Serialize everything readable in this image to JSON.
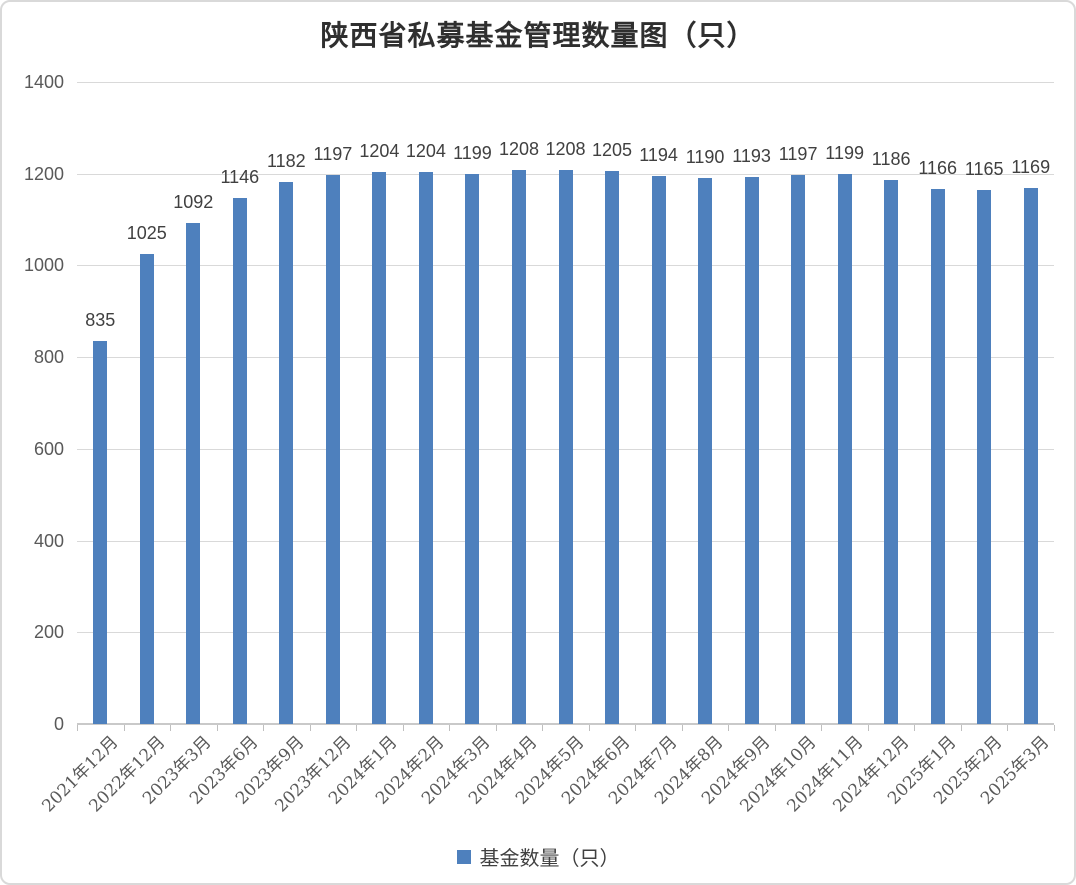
{
  "chart_data": {
    "type": "bar",
    "title": "陕西省私募基金管理数量图（只）",
    "series_name": "基金数量（只）",
    "categories": [
      "2021年12月",
      "2022年12月",
      "2023年3月",
      "2023年6月",
      "2023年9月",
      "2023年12月",
      "2024年1月",
      "2024年2月",
      "2024年3月",
      "2024年4月",
      "2024年5月",
      "2024年6月",
      "2024年7月",
      "2024年8月",
      "2024年9月",
      "2024年10月",
      "2024年11月",
      "2024年12月",
      "2025年1月",
      "2025年2月",
      "2025年3月"
    ],
    "values": [
      835,
      1025,
      1092,
      1146,
      1182,
      1197,
      1204,
      1204,
      1199,
      1208,
      1208,
      1205,
      1194,
      1190,
      1193,
      1197,
      1199,
      1186,
      1166,
      1165,
      1169
    ],
    "ylim": [
      0,
      1400
    ],
    "yticks": [
      0,
      200,
      400,
      600,
      800,
      1000,
      1200,
      1400
    ],
    "xlabel": "",
    "ylabel": "",
    "grid": true,
    "data_labels": true,
    "legend_position": "bottom",
    "bar_color": "#4E80BD",
    "gridline_color": "#d9d9d9",
    "text_color": "#595959"
  }
}
